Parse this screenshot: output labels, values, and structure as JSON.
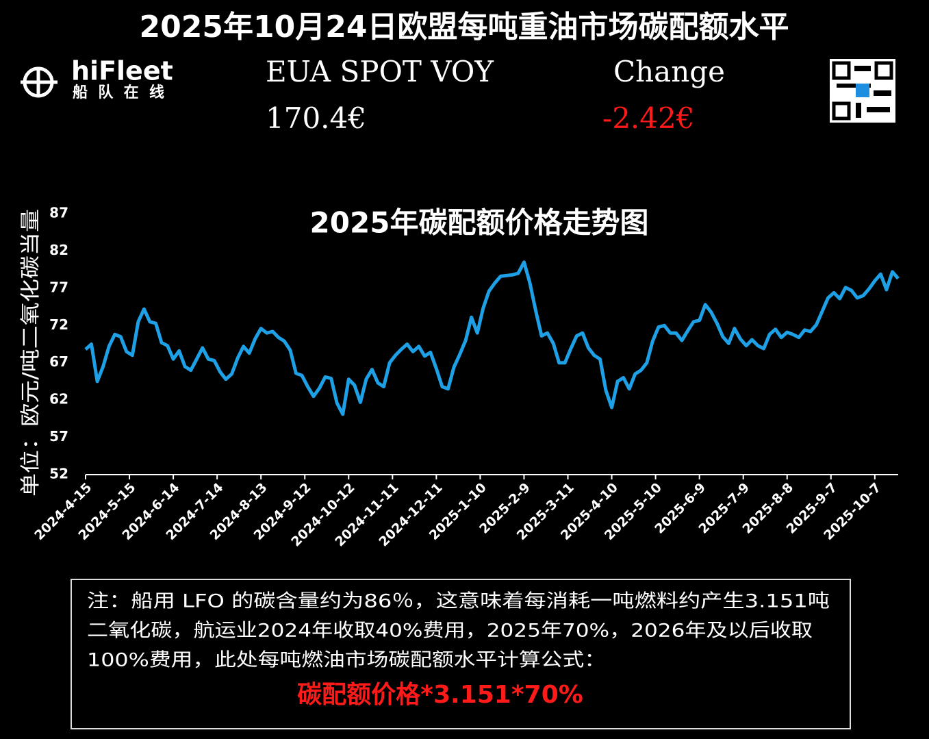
{
  "header": {
    "title": "2025年10月24日欧盟每吨重油市场碳配额水平",
    "brand": "hiFleet",
    "brand_sub": "船队在线",
    "spot_label": "EUA SPOT VOY",
    "spot_value": "170.4€",
    "change_label": "Change",
    "change_value": "-2.42€"
  },
  "chart_data": {
    "type": "line",
    "title": "2025年碳配额价格走势图",
    "y_label": "单位：欧元/吨二氧化碳当量",
    "x": [
      "2024-4-15",
      "2024-4-19",
      "2024-4-23",
      "2024-4-27",
      "2024-5-1",
      "2024-5-5",
      "2024-5-9",
      "2024-5-13",
      "2024-5-17",
      "2024-5-21",
      "2024-5-25",
      "2024-5-29",
      "2024-6-2",
      "2024-6-6",
      "2024-6-10",
      "2024-6-14",
      "2024-6-18",
      "2024-6-22",
      "2024-6-26",
      "2024-6-30",
      "2024-7-4",
      "2024-7-8",
      "2024-7-12",
      "2024-7-16",
      "2024-7-20",
      "2024-7-24",
      "2024-7-28",
      "2024-8-1",
      "2024-8-5",
      "2024-8-9",
      "2024-8-13",
      "2024-8-17",
      "2024-8-21",
      "2024-8-25",
      "2024-8-29",
      "2024-9-2",
      "2024-9-6",
      "2024-9-10",
      "2024-9-14",
      "2024-9-18",
      "2024-9-22",
      "2024-9-26",
      "2024-9-30",
      "2024-10-4",
      "2024-10-8",
      "2024-10-12",
      "2024-10-16",
      "2024-10-20",
      "2024-10-24",
      "2024-10-28",
      "2024-11-1",
      "2024-11-5",
      "2024-11-9",
      "2024-11-13",
      "2024-11-17",
      "2024-11-21",
      "2024-11-25",
      "2024-11-29",
      "2024-12-3",
      "2024-12-7",
      "2024-12-11",
      "2024-12-15",
      "2024-12-19",
      "2024-12-23",
      "2024-12-27",
      "2024-12-31",
      "2025-1-4",
      "2025-1-8",
      "2025-1-12",
      "2025-1-16",
      "2025-1-20",
      "2025-1-24",
      "2025-1-28",
      "2025-2-1",
      "2025-2-5",
      "2025-2-9",
      "2025-2-13",
      "2025-2-17",
      "2025-2-21",
      "2025-2-25",
      "2025-3-1",
      "2025-3-5",
      "2025-3-9",
      "2025-3-13",
      "2025-3-17",
      "2025-3-21",
      "2025-3-25",
      "2025-3-29",
      "2025-4-2",
      "2025-4-6",
      "2025-4-10",
      "2025-4-14",
      "2025-4-18",
      "2025-4-22",
      "2025-4-26",
      "2025-4-30",
      "2025-5-4",
      "2025-5-8",
      "2025-5-12",
      "2025-5-16",
      "2025-5-20",
      "2025-5-24",
      "2025-5-28",
      "2025-6-1",
      "2025-6-5",
      "2025-6-9",
      "2025-6-13",
      "2025-6-17",
      "2025-6-21",
      "2025-6-25",
      "2025-6-29",
      "2025-7-3",
      "2025-7-7",
      "2025-7-11",
      "2025-7-15",
      "2025-7-19",
      "2025-7-23",
      "2025-7-27",
      "2025-7-31",
      "2025-8-4",
      "2025-8-8",
      "2025-8-12",
      "2025-8-16",
      "2025-8-20",
      "2025-8-24",
      "2025-8-28",
      "2025-9-1",
      "2025-9-5",
      "2025-9-9",
      "2025-9-13",
      "2025-9-17",
      "2025-9-21",
      "2025-9-25",
      "2025-9-29",
      "2025-10-3",
      "2025-10-7",
      "2025-10-11",
      "2025-10-15",
      "2025-10-19",
      "2025-10-23"
    ],
    "series": [
      {
        "color": "#1ea0e6",
        "values": [
          68.8,
          69.5,
          64.5,
          66.5,
          69.2,
          70.8,
          70.5,
          68.5,
          68,
          72.5,
          74.2,
          72.5,
          72.3,
          69.7,
          69.3,
          67.5,
          68.6,
          66.5,
          66,
          67.5,
          69,
          67.5,
          67.3,
          65.8,
          64.8,
          65.5,
          67.6,
          69.2,
          68.3,
          70.2,
          71.6,
          71,
          71.2,
          70.4,
          69.9,
          68.7,
          65.6,
          65.3,
          63.8,
          62.5,
          63.6,
          65.1,
          64.9,
          61.6,
          60.1,
          64.8,
          64,
          61.7,
          64.8,
          66.1,
          64.3,
          63.8,
          67,
          68,
          68.8,
          69.5,
          68.5,
          69.2,
          67.9,
          68.4,
          66.2,
          63.8,
          63.5,
          66.4,
          68.1,
          70,
          73.1,
          71,
          74.3,
          76.6,
          77.7,
          78.6,
          78.7,
          78.8,
          79,
          80.5,
          77.7,
          74,
          70.6,
          71,
          69.6,
          67,
          67,
          68.9,
          70.6,
          71,
          69,
          68,
          67.5,
          63.3,
          61,
          64.5,
          65,
          63.5,
          65.5,
          66,
          67,
          69.9,
          71.8,
          72,
          71,
          71,
          70,
          71.3,
          72.5,
          72.7,
          74.8,
          73.8,
          72.3,
          70.5,
          69.6,
          71.6,
          70.2,
          69.3,
          70.1,
          69.3,
          68.9,
          70.8,
          71.5,
          70.4,
          71.1,
          70.8,
          70.4,
          71.4,
          71.2,
          72.1,
          73.9,
          75.7,
          76.4,
          75.6,
          77.1,
          76.7,
          75.7,
          76,
          76.9,
          78,
          78.9,
          76.8,
          79.2,
          78.3
        ]
      }
    ],
    "xlim": [
      "2024-4-15",
      "2025-10-23"
    ],
    "xticks": [
      "2024-4-15",
      "2024-5-15",
      "2024-6-14",
      "2024-7-14",
      "2024-8-13",
      "2024-9-12",
      "2024-10-12",
      "2024-11-11",
      "2024-12-11",
      "2025-1-10",
      "2025-2-9",
      "2025-3-11",
      "2025-4-10",
      "2025-5-10",
      "2025-6-9",
      "2025-7-9",
      "2025-8-8",
      "2025-9-7",
      "2025-10-7"
    ],
    "ylim": [
      52,
      87
    ],
    "yticks": [
      52,
      57,
      62,
      67,
      72,
      77,
      82,
      87
    ],
    "grid": false
  },
  "note": {
    "lines": [
      "注：船用 LFO 的碳含量约为86％，这意味着每消耗一吨燃料约产生3.151吨",
      "二氧化碳，航运业2024年收取40%费用，2025年70%，2026年及以后收取",
      "100%费用，此处每吨燃油市场碳配额水平计算公式："
    ],
    "formula": "碳配额价格*3.151*70%"
  }
}
